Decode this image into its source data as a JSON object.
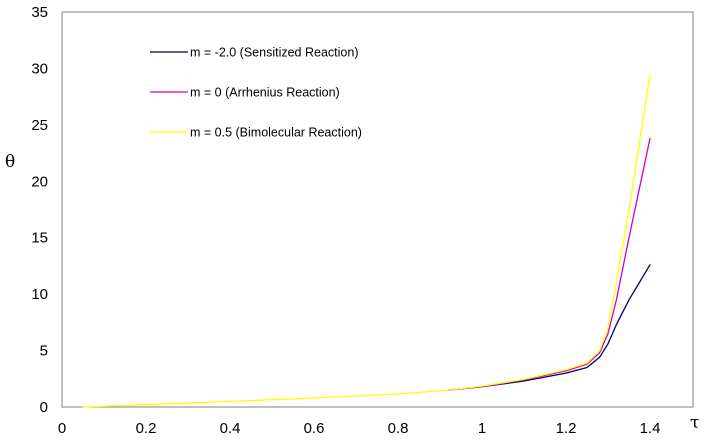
{
  "chart_data": {
    "type": "line",
    "title": "",
    "xlabel": "τ",
    "ylabel": "θ",
    "xlim": [
      0,
      1.4
    ],
    "ylim": [
      0,
      35
    ],
    "xticks": [
      "0",
      "0.2",
      "0.4",
      "0.6",
      "0.8",
      "1",
      "1.2",
      "1.4"
    ],
    "yticks": [
      "0",
      "5",
      "10",
      "15",
      "20",
      "25",
      "30",
      "35"
    ],
    "grid": false,
    "legend_position": "top-left",
    "series": [
      {
        "name": "m = -2.0  (Sensitized Reaction)",
        "color": "#000066",
        "x": [
          0.92,
          1.0,
          1.1,
          1.2,
          1.25,
          1.28,
          1.3,
          1.32,
          1.35,
          1.4
        ],
        "y": [
          1.5,
          1.8,
          2.3,
          3.0,
          3.5,
          4.4,
          5.6,
          7.3,
          9.5,
          12.6
        ]
      },
      {
        "name": "m = 0 (Arrhenius Reaction)",
        "color": "#cc00cc",
        "x": [
          0.92,
          1.0,
          1.1,
          1.2,
          1.25,
          1.28,
          1.3,
          1.32,
          1.35,
          1.4
        ],
        "y": [
          1.5,
          1.8,
          2.4,
          3.2,
          3.8,
          4.8,
          6.5,
          9.5,
          15.0,
          23.8
        ]
      },
      {
        "name": "m = 0.5 (Bimolecular Reaction)",
        "color": "#ffff00",
        "x": [
          0.05,
          0.2,
          0.4,
          0.6,
          0.8,
          0.92,
          1.0,
          1.1,
          1.2,
          1.25,
          1.28,
          1.3,
          1.32,
          1.35,
          1.4
        ],
        "y": [
          0.0,
          0.2,
          0.5,
          0.8,
          1.15,
          1.5,
          1.85,
          2.45,
          3.3,
          3.9,
          5.0,
          7.0,
          11.0,
          17.5,
          29.5
        ]
      }
    ]
  }
}
